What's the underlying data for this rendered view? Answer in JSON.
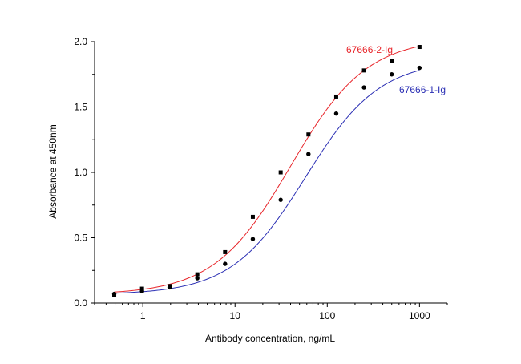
{
  "chart_data": {
    "type": "scatter",
    "xlabel": "Antibody concentration, ng/mL",
    "ylabel": "Absorbance at 450nm",
    "xscale": "log",
    "xlim": [
      0.3,
      2000
    ],
    "ylim": [
      0,
      2.0
    ],
    "xticks": [
      1,
      10,
      100,
      1000
    ],
    "xtick_labels": [
      "1",
      "10",
      "100",
      "1000"
    ],
    "yticks": [
      0.0,
      0.5,
      1.0,
      1.5,
      2.0
    ],
    "ytick_labels": [
      "0.0",
      "0.5",
      "1.0",
      "1.5",
      "2.0"
    ],
    "grid": false,
    "legend": "inline labels next to curves",
    "series": [
      {
        "name": "67666-2-Ig",
        "color": "#e8262b",
        "marker": "square",
        "x": [
          0.49,
          0.98,
          1.95,
          3.9,
          7.8,
          15.6,
          31.25,
          62.5,
          125,
          250,
          500,
          1000
        ],
        "y": [
          0.06,
          0.11,
          0.13,
          0.22,
          0.39,
          0.66,
          1.0,
          1.29,
          1.58,
          1.78,
          1.85,
          1.96
        ],
        "fit": {
          "bottom": 0.065,
          "top": 2.03,
          "ec50": 40,
          "hill": 1.05
        }
      },
      {
        "name": "67666-1-Ig",
        "color": "#2b2fb4",
        "marker": "circle",
        "x": [
          0.49,
          0.98,
          1.95,
          3.9,
          7.8,
          15.6,
          31.25,
          62.5,
          125,
          250,
          500,
          1000
        ],
        "y": [
          0.07,
          0.09,
          0.12,
          0.19,
          0.3,
          0.49,
          0.79,
          1.14,
          1.45,
          1.65,
          1.75,
          1.8
        ],
        "fit": {
          "bottom": 0.065,
          "top": 1.86,
          "ec50": 58,
          "hill": 1.08
        }
      }
    ]
  }
}
